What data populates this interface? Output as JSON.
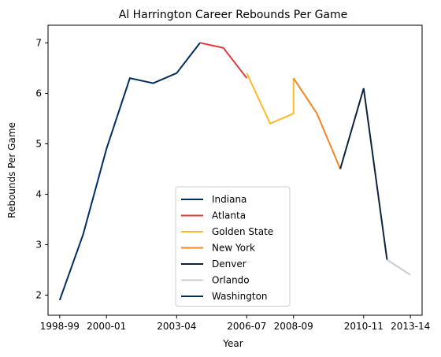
{
  "chart_data": {
    "type": "line",
    "title": "Al Harrington Career Rebounds Per Game",
    "xlabel": "Year",
    "ylabel": "Rebounds Per Game",
    "xticks": [
      "1998-99",
      "2000-01",
      "2003-04",
      "2006-07",
      "2008-09",
      "2010-11",
      "2013-14"
    ],
    "xtick_positions": [
      0,
      2,
      5,
      8,
      10,
      13,
      15
    ],
    "xlim": [
      -0.5,
      15.5
    ],
    "yticks": [
      2,
      3,
      4,
      5,
      6,
      7
    ],
    "ylim": [
      1.6,
      7.35
    ],
    "grid": false,
    "legend_position": "lower center",
    "series": [
      {
        "name": "Indiana",
        "color": "#002D62",
        "points": [
          [
            0,
            1.9
          ],
          [
            1,
            3.2
          ],
          [
            2,
            4.9
          ],
          [
            3,
            6.3
          ],
          [
            4,
            6.2
          ],
          [
            5,
            6.4
          ],
          [
            6,
            7.0
          ]
        ]
      },
      {
        "name": "Atlanta",
        "color": "#E03A3E",
        "points": [
          [
            6,
            7.0
          ],
          [
            7,
            6.9
          ],
          [
            8,
            6.3
          ]
        ]
      },
      {
        "name": "Golden State",
        "color": "#FDB927",
        "points": [
          [
            8,
            6.4
          ],
          [
            9,
            5.4
          ],
          [
            10,
            5.6
          ],
          [
            10,
            6.3
          ]
        ]
      },
      {
        "name": "New York",
        "color": "#F58426",
        "points": [
          [
            10,
            6.3
          ],
          [
            11,
            5.6
          ],
          [
            12,
            4.5
          ]
        ]
      },
      {
        "name": "Denver",
        "color": "#0E2240",
        "points": [
          [
            12,
            4.5
          ],
          [
            13,
            6.1
          ],
          [
            14,
            2.7
          ]
        ]
      },
      {
        "name": "Orlando",
        "color": "#C4CED4",
        "points": [
          [
            14,
            2.7
          ],
          [
            15,
            2.4
          ]
        ]
      },
      {
        "name": "Washington",
        "color": "#002B5C",
        "points": []
      }
    ]
  }
}
